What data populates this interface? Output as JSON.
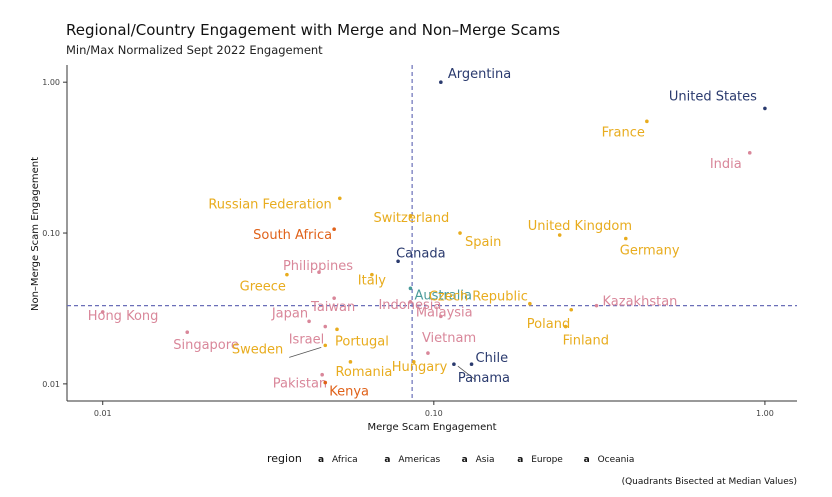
{
  "chart_data": {
    "type": "scatter",
    "title": "Regional/Country Engagement with Merge and Non–Merge Scams",
    "subtitle": "Min/Max Normalized Sept 2022 Engagement",
    "xlabel": "Merge Scam Engagement",
    "ylabel": "Non–Merge Scam Engagement",
    "x_scale": "log",
    "y_scale": "log",
    "xlim": [
      0.0078,
      1.25
    ],
    "ylim": [
      0.0077,
      1.3
    ],
    "x_ticks": [
      0.01,
      0.1,
      1.0
    ],
    "x_tick_labels": [
      "0.01",
      "0.10",
      "1.00"
    ],
    "y_ticks": [
      0.01,
      0.1,
      1.0
    ],
    "y_tick_labels": [
      "0.01",
      "0.10",
      "1.00"
    ],
    "median_x": 0.086,
    "median_y": 0.033,
    "legend_title": "region",
    "legend_position": "bottom",
    "note": "(Quadrants Bisected at Median Values)",
    "regions": [
      {
        "name": "Africa",
        "color": "#e0621a"
      },
      {
        "name": "Americas",
        "color": "#2a3a6e"
      },
      {
        "name": "Asia",
        "color": "#d9879a"
      },
      {
        "name": "Europe",
        "color": "#e8ac1e"
      },
      {
        "name": "Oceania",
        "color": "#4a9b9b"
      }
    ],
    "points": [
      {
        "label": "Argentina",
        "region": "Americas",
        "x": 0.105,
        "y": 1.0
      },
      {
        "label": "United States",
        "region": "Americas",
        "x": 1.0,
        "y": 0.67
      },
      {
        "label": "France",
        "region": "Europe",
        "x": 0.44,
        "y": 0.55
      },
      {
        "label": "India",
        "region": "Asia",
        "x": 0.9,
        "y": 0.34
      },
      {
        "label": "Russian Federation",
        "region": "Europe",
        "x": 0.052,
        "y": 0.17
      },
      {
        "label": "Switzerland",
        "region": "Europe",
        "x": 0.085,
        "y": 0.13
      },
      {
        "label": "United Kingdom",
        "region": "Europe",
        "x": 0.24,
        "y": 0.097
      },
      {
        "label": "Germany",
        "region": "Europe",
        "x": 0.38,
        "y": 0.092
      },
      {
        "label": "South Africa",
        "region": "Africa",
        "x": 0.05,
        "y": 0.106
      },
      {
        "label": "Spain",
        "region": "Europe",
        "x": 0.12,
        "y": 0.1
      },
      {
        "label": "Canada",
        "region": "Americas",
        "x": 0.078,
        "y": 0.065
      },
      {
        "label": "Philippines",
        "region": "Asia",
        "x": 0.045,
        "y": 0.055
      },
      {
        "label": "Italy",
        "region": "Europe",
        "x": 0.065,
        "y": 0.053
      },
      {
        "label": "Australia",
        "region": "Oceania",
        "x": 0.085,
        "y": 0.043
      },
      {
        "label": "Greece",
        "region": "Europe",
        "x": 0.036,
        "y": 0.053
      },
      {
        "label": "Taiwan",
        "region": "Asia",
        "x": 0.05,
        "y": 0.037
      },
      {
        "label": "Indonesia",
        "region": "Asia",
        "x": 0.085,
        "y": 0.035
      },
      {
        "label": "Czech Republic",
        "region": "Europe",
        "x": 0.195,
        "y": 0.034
      },
      {
        "label": "Kazakhstan",
        "region": "Asia",
        "x": 0.31,
        "y": 0.033
      },
      {
        "label": "Hong Kong",
        "region": "Asia",
        "x": 0.01,
        "y": 0.03
      },
      {
        "label": "Japan",
        "region": "Asia",
        "x": 0.042,
        "y": 0.026
      },
      {
        "label": "Malaysia",
        "region": "Asia",
        "x": 0.105,
        "y": 0.028
      },
      {
        "label": "Poland",
        "region": "Europe",
        "x": 0.26,
        "y": 0.031
      },
      {
        "label": "Israel",
        "region": "Asia",
        "x": 0.047,
        "y": 0.024
      },
      {
        "label": "Portugal",
        "region": "Europe",
        "x": 0.051,
        "y": 0.023
      },
      {
        "label": "Singapore",
        "region": "Asia",
        "x": 0.018,
        "y": 0.022
      },
      {
        "label": "Finland",
        "region": "Europe",
        "x": 0.25,
        "y": 0.024
      },
      {
        "label": "Vietnam",
        "region": "Asia",
        "x": 0.096,
        "y": 0.016
      },
      {
        "label": "Sweden",
        "region": "Europe",
        "x": 0.047,
        "y": 0.018
      },
      {
        "label": "Chile",
        "region": "Americas",
        "x": 0.13,
        "y": 0.0135
      },
      {
        "label": "Hungary",
        "region": "Europe",
        "x": 0.087,
        "y": 0.014
      },
      {
        "label": "Romania",
        "region": "Europe",
        "x": 0.056,
        "y": 0.014
      },
      {
        "label": "Pakistan",
        "region": "Asia",
        "x": 0.046,
        "y": 0.0115
      },
      {
        "label": "Panama",
        "region": "Americas",
        "x": 0.115,
        "y": 0.0135
      },
      {
        "label": "Kenya",
        "region": "Africa",
        "x": 0.047,
        "y": 0.0102
      }
    ]
  }
}
